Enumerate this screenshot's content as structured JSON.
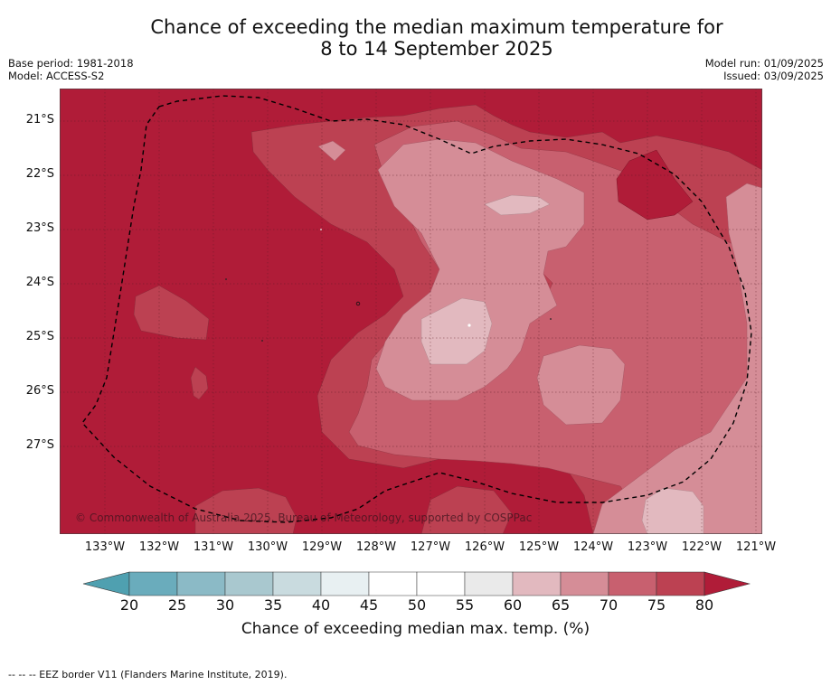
{
  "title_line1": "Chance of exceeding the median maximum temperature for",
  "title_line2": "8 to 14 September 2025",
  "base_period": "Base period: 1981-2018",
  "model": "Model: ACCESS-S2",
  "model_run": "Model run: 01/09/2025",
  "issued": "Issued: 03/09/2025",
  "copyright": "© Commonwealth of Australia 2025, Bureau of Meteorology, supported by COSPPac",
  "lat_labels": [
    "21°S",
    "22°S",
    "23°S",
    "24°S",
    "25°S",
    "26°S",
    "27°S"
  ],
  "lon_labels": [
    "133°W",
    "132°W",
    "131°W",
    "130°W",
    "129°W",
    "128°W",
    "127°W",
    "126°W",
    "125°W",
    "124°W",
    "123°W",
    "122°W",
    "121°W"
  ],
  "colorbar": {
    "ticks": [
      "20",
      "25",
      "30",
      "35",
      "40",
      "45",
      "50",
      "55",
      "60",
      "65",
      "70",
      "75",
      "80"
    ],
    "colors": [
      "#6aacbc",
      "#8bbac6",
      "#a9c8cf",
      "#c9dbdf",
      "#e8f0f2",
      "#ffffff",
      "#ffffff",
      "#eaeaea",
      "#e2b9bf",
      "#d58d97",
      "#c8606f",
      "#bc4152"
    ],
    "under_color": "#4fa0b0",
    "over_color": "#b01c38",
    "label": "Chance of exceeding median max. temp. (%)"
  },
  "map_colors": {
    "p80": "#b01c38",
    "p75": "#bc4152",
    "p70": "#c8606f",
    "p65": "#d58d97",
    "p60": "#e2b9bf"
  },
  "footnote": "--  --  -- EEZ border V11 (Flanders Marine Institute, 2019)."
}
